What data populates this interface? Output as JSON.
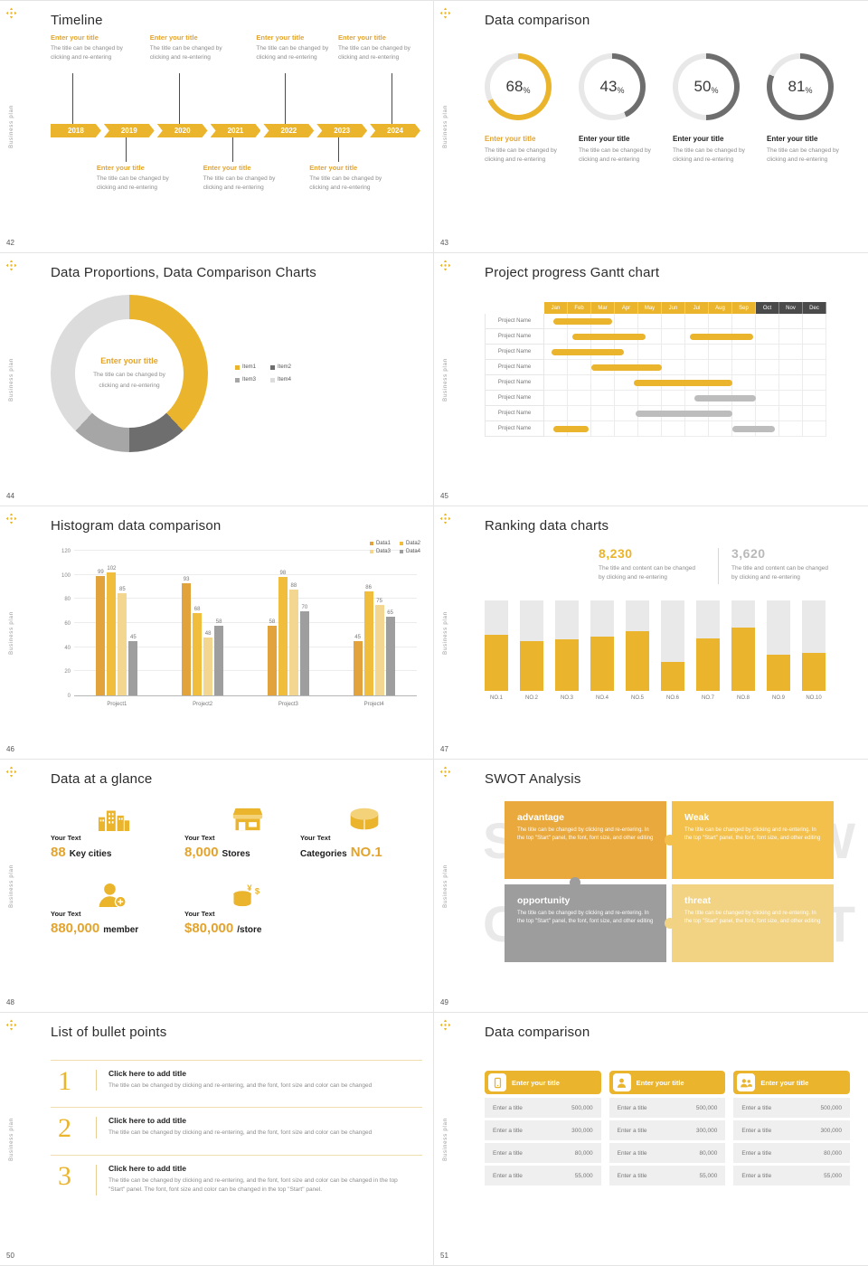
{
  "sidebar": {
    "vertical_text": "Business plan"
  },
  "accent": {
    "gold": "#eab42c",
    "gold_soft": "#f4d27a",
    "gray_dark": "#6e6e6e",
    "track": "#e8e8e8"
  },
  "slide42": {
    "num": "42",
    "title": "Timeline",
    "item_title": "Enter your title",
    "item_desc": "The title can be changed by clicking and re-entering",
    "chart_data": {
      "type": "timeline",
      "years": [
        "2018",
        "2019",
        "2020",
        "2021",
        "2022",
        "2023",
        "2024"
      ],
      "top_items": [
        0,
        2,
        4,
        6
      ],
      "bottom_items": [
        1,
        3,
        5
      ]
    }
  },
  "slide43": {
    "num": "43",
    "title": "Data comparison",
    "desc": "The title can be changed by clicking and re-entering",
    "chart_data": {
      "type": "donut",
      "unit": "%",
      "items": [
        {
          "label": "Enter your title",
          "value": 68,
          "accent": true
        },
        {
          "label": "Enter your title",
          "value": 43,
          "accent": false
        },
        {
          "label": "Enter your title",
          "value": 50,
          "accent": false
        },
        {
          "label": "Enter your title",
          "value": 81,
          "accent": false
        }
      ]
    }
  },
  "slide44": {
    "num": "44",
    "title": "Data Proportions, Data Comparison Charts",
    "center_title": "Enter your title",
    "center_desc": "The title can be changed by clicking and re-entering",
    "chart_data": {
      "type": "pie",
      "items": [
        {
          "label": "Item1",
          "value": 38,
          "color": "#eab42c"
        },
        {
          "label": "Item2",
          "value": 12,
          "color": "#6e6e6e"
        },
        {
          "label": "Item3",
          "value": 12,
          "color": "#a6a6a6"
        },
        {
          "label": "Item4",
          "value": 38,
          "color": "#dcdcdc"
        }
      ]
    }
  },
  "slide45": {
    "num": "45",
    "title": "Project progress Gantt chart",
    "chart_data": {
      "type": "gantt",
      "months": [
        "Jan",
        "Feb",
        "Mar",
        "Apr",
        "May",
        "Jun",
        "Jul",
        "Aug",
        "Sep",
        "Oct",
        "Nov",
        "Dec"
      ],
      "month_colors": [
        "#eab42c",
        "#eab42c",
        "#eab42c",
        "#eab42c",
        "#eab42c",
        "#eab42c",
        "#eab42c",
        "#eab42c",
        "#eab42c",
        "#4a4a4a",
        "#4a4a4a",
        "#4a4a4a"
      ],
      "rows": [
        {
          "label": "Project Name",
          "bars": [
            [
              0.4,
              2.9,
              "#eab42c"
            ]
          ]
        },
        {
          "label": "Project Name",
          "bars": [
            [
              1.2,
              4.3,
              "#eab42c"
            ],
            [
              6.2,
              8.9,
              "#eab42c"
            ]
          ]
        },
        {
          "label": "Project Name",
          "bars": [
            [
              0.3,
              3.4,
              "#eab42c"
            ]
          ]
        },
        {
          "label": "Project Name",
          "bars": [
            [
              2.0,
              5.0,
              "#eab42c"
            ]
          ]
        },
        {
          "label": "Project Name",
          "bars": [
            [
              3.8,
              8.0,
              "#eab42c"
            ]
          ]
        },
        {
          "label": "Project Name",
          "bars": [
            [
              6.4,
              9.0,
              "#bdbdbd"
            ]
          ]
        },
        {
          "label": "Project Name",
          "bars": [
            [
              3.9,
              8.0,
              "#bdbdbd"
            ]
          ]
        },
        {
          "label": "Project Name",
          "bars": [
            [
              0.4,
              1.9,
              "#eab42c"
            ],
            [
              8.0,
              9.8,
              "#bdbdbd"
            ]
          ]
        }
      ]
    }
  },
  "slide46": {
    "num": "46",
    "title": "Histogram data comparison",
    "chart_data": {
      "type": "bar",
      "categories": [
        "Project1",
        "Project2",
        "Project3",
        "Project4"
      ],
      "series": [
        {
          "name": "Data1",
          "color": "#e2a23c",
          "values": [
            99,
            93,
            58,
            45
          ]
        },
        {
          "name": "Data2",
          "color": "#f0be3c",
          "values": [
            102,
            68,
            98,
            86
          ]
        },
        {
          "name": "Data3",
          "color": "#f3d68f",
          "values": [
            85,
            48,
            88,
            75
          ]
        },
        {
          "name": "Data4",
          "color": "#9e9e9e",
          "values": [
            45,
            58,
            70,
            65
          ]
        }
      ],
      "ylim": [
        0,
        120
      ],
      "yticks": [
        0,
        20,
        40,
        60,
        80,
        100,
        120
      ]
    }
  },
  "slide47": {
    "num": "47",
    "title": "Ranking data charts",
    "stats": [
      {
        "value": "8,230",
        "desc": "The title and content can be changed by clicking and re-entering",
        "accent": true
      },
      {
        "value": "3,620",
        "desc": "The title and content can be changed by clicking and re-entering",
        "accent": false
      }
    ],
    "chart_data": {
      "type": "bar",
      "categories": [
        "NO.1",
        "NO.2",
        "NO.3",
        "NO.4",
        "NO.5",
        "NO.6",
        "NO.7",
        "NO.8",
        "NO.9",
        "NO.10"
      ],
      "values": [
        62,
        55,
        57,
        60,
        66,
        32,
        58,
        70,
        40,
        42
      ],
      "track_max": 100
    }
  },
  "slide48": {
    "num": "48",
    "title": "Data at a glance",
    "items": [
      {
        "icon": "city-icon",
        "label": "Your Text",
        "big": "88",
        "rest": "Key cities",
        "big_first": true
      },
      {
        "icon": "store-icon",
        "label": "Your Text",
        "big": "8,000",
        "rest": "Stores",
        "big_first": true
      },
      {
        "icon": "categories-icon",
        "label": "Your Text",
        "big": "NO.1",
        "rest": "Categories",
        "big_first": false
      },
      {
        "icon": "member-icon",
        "label": "Your Text",
        "big": "880,000",
        "rest": "member",
        "big_first": true
      },
      {
        "icon": "money-icon",
        "label": "Your Text",
        "big": "$80,000",
        "rest": "/store",
        "big_first": true
      }
    ]
  },
  "slide49": {
    "num": "49",
    "title": "SWOT Analysis",
    "cells": [
      {
        "letter": "S",
        "word": "advantage",
        "color": "#e9a93d",
        "text": "The title can be changed by clicking and re-entering. In the top \"Start\" panel, the font, font size, and other editing"
      },
      {
        "letter": "W",
        "word": "Weak",
        "color": "#f3c04c",
        "text": "The title can be changed by clicking and re-entering. In the top \"Start\" panel, the font, font size, and other editing"
      },
      {
        "letter": "O",
        "word": "opportunity",
        "color": "#9d9d9d",
        "text": "The title can be changed by clicking and re-entering. In the top \"Start\" panel, the font, font size, and other editing"
      },
      {
        "letter": "T",
        "word": "threat",
        "color": "#f2d383",
        "text": "The title can be changed by clicking and re-entering. In the top \"Start\" panel, the font, font size, and other editing"
      }
    ]
  },
  "slide50": {
    "num": "50",
    "title": "List of bullet points",
    "items": [
      {
        "num": "1",
        "title": "Click here to add title",
        "desc": "The title can be changed by clicking and re-entering, and the font, font size and color can be changed"
      },
      {
        "num": "2",
        "title": "Click here to add title",
        "desc": "The title can be changed by clicking and re-entering, and the font, font size and color can be changed"
      },
      {
        "num": "3",
        "title": "Click here to add title",
        "desc": "The title can be changed by clicking and re-entering, and the font, font size and color can be changed in the top \"Start\" panel. The font, font size and color can be changed in the top \"Start\" panel."
      }
    ]
  },
  "slide51": {
    "num": "51",
    "title": "Data comparison",
    "tables": [
      {
        "icon": "device-icon",
        "header": "Enter your title",
        "rows": [
          [
            "Enter a title",
            "500,000"
          ],
          [
            "Enter a title",
            "300,000"
          ],
          [
            "Enter a title",
            "80,000"
          ],
          [
            "Enter a title",
            "55,000"
          ]
        ]
      },
      {
        "icon": "person-icon",
        "header": "Enter your title",
        "rows": [
          [
            "Enter a title",
            "500,000"
          ],
          [
            "Enter a title",
            "300,000"
          ],
          [
            "Enter a title",
            "80,000"
          ],
          [
            "Enter a title",
            "55,000"
          ]
        ]
      },
      {
        "icon": "group-icon",
        "header": "Enter your title",
        "rows": [
          [
            "Enter a title",
            "500,000"
          ],
          [
            "Enter a title",
            "300,000"
          ],
          [
            "Enter a title",
            "80,000"
          ],
          [
            "Enter a title",
            "55,000"
          ]
        ]
      }
    ]
  }
}
